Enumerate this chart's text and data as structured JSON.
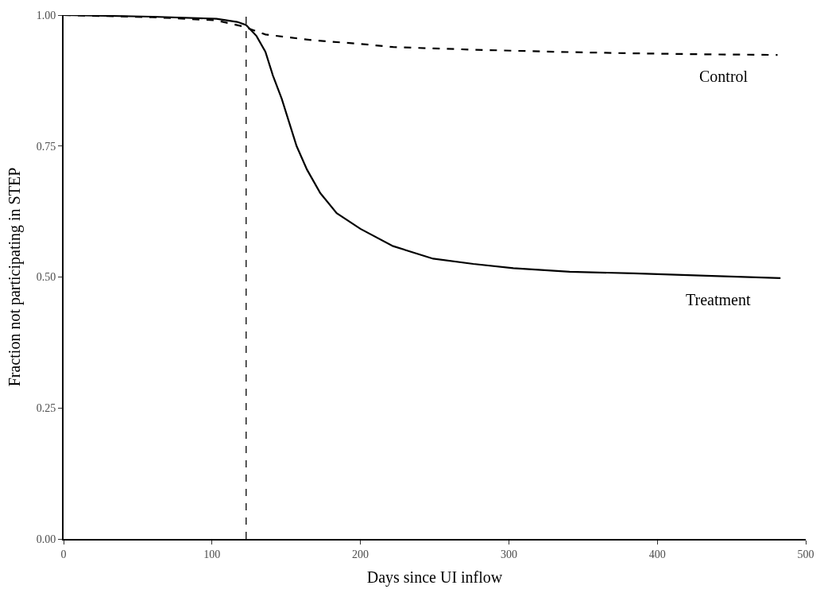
{
  "chart_data": {
    "type": "line",
    "xlabel": "Days since UI inflow",
    "ylabel": "Fraction not participating in STEP",
    "xlim": [
      0,
      500
    ],
    "ylim": [
      0,
      1
    ],
    "xticks": [
      0,
      100,
      200,
      300,
      400,
      500
    ],
    "yticks": [
      {
        "value": 0,
        "label": "0.00"
      },
      {
        "value": 0.25,
        "label": "0.25"
      },
      {
        "value": 0.5,
        "label": "0.50"
      },
      {
        "value": 0.75,
        "label": "0.75"
      },
      {
        "value": 1,
        "label": "1.00"
      }
    ],
    "grid": false,
    "legend": false,
    "marker": "none",
    "series": [
      {
        "name": "Control",
        "color": "#000000",
        "line_style": "dashed",
        "x": [
          0,
          60,
          103,
          120,
          136,
          168,
          200,
          222,
          276,
          330,
          384,
          437,
          481
        ],
        "values": [
          1.0,
          0.996,
          0.99,
          0.979,
          0.963,
          0.952,
          0.945,
          0.939,
          0.934,
          0.93,
          0.927,
          0.925,
          0.924
        ]
      },
      {
        "name": "Treatment",
        "color": "#000000",
        "line_style": "solid",
        "x": [
          0,
          60,
          103,
          117,
          123,
          130,
          136,
          141,
          147,
          152,
          157,
          164,
          173,
          184,
          200,
          222,
          249,
          276,
          303,
          341,
          384,
          437,
          483
        ],
        "values": [
          1.0,
          0.997,
          0.993,
          0.987,
          0.981,
          0.96,
          0.93,
          0.885,
          0.84,
          0.795,
          0.75,
          0.705,
          0.66,
          0.622,
          0.592,
          0.559,
          0.535,
          0.525,
          0.517,
          0.51,
          0.507,
          0.502,
          0.498
        ]
      }
    ],
    "ref_lines": [
      {
        "axis": "x",
        "value": 123,
        "line_style": "dashed",
        "color": "#000000"
      }
    ]
  }
}
